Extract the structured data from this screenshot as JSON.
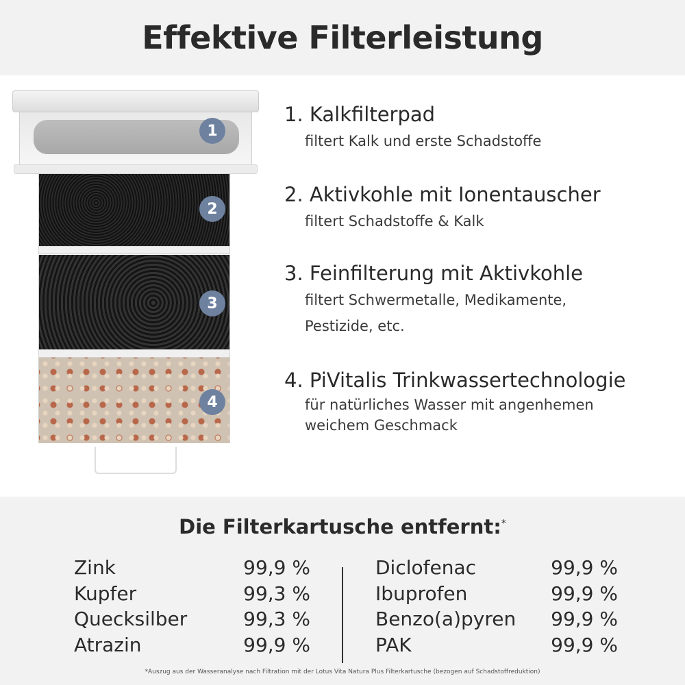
{
  "title": "Effektive Filterleistung",
  "layers": [
    {
      "badge": "1",
      "heading": "1. Kalkfilterpad",
      "desc": [
        "filtert Kalk und erste Schadstoffe"
      ]
    },
    {
      "badge": "2",
      "heading": "2. Aktivkohle mit Ionentauscher",
      "desc": [
        "filtert Schadstoffe & Kalk"
      ]
    },
    {
      "badge": "3",
      "heading": "3. Feinfilterung mit Aktivkohle",
      "desc": [
        "filtert Schwermetalle, Medikamente,",
        "Pestizide, etc."
      ]
    },
    {
      "badge": "4",
      "heading": "4. PiVitalis Trinkwassertechnologie",
      "desc": [
        "für natürliches Wasser mit angenhemen",
        "weichem Geschmack"
      ]
    }
  ],
  "removal": {
    "heading": "Die Filterkartusche entfernt:",
    "asterisk": "*",
    "left": [
      {
        "name": "Zink",
        "value": "99,9 %"
      },
      {
        "name": "Kupfer",
        "value": "99,3 %"
      },
      {
        "name": "Quecksilber",
        "value": "99,3 %"
      },
      {
        "name": "Atrazin",
        "value": "99,9 %"
      }
    ],
    "right": [
      {
        "name": "Diclofenac",
        "value": "99,9 %"
      },
      {
        "name": "Ibuprofen",
        "value": "99,9 %"
      },
      {
        "name": "Benzo(a)pyren",
        "value": "99,9 %"
      },
      {
        "name": "PAK",
        "value": "99,9 %"
      }
    ]
  },
  "footnote": "*Auszug aus der Wasseranalyse nach Filtration mit der Lotus Vita Natura Plus Filterkartusche (bezogen auf Schadstoffreduktion)",
  "colors": {
    "badge": "#6e82a0",
    "band": "#f2f2f2"
  }
}
